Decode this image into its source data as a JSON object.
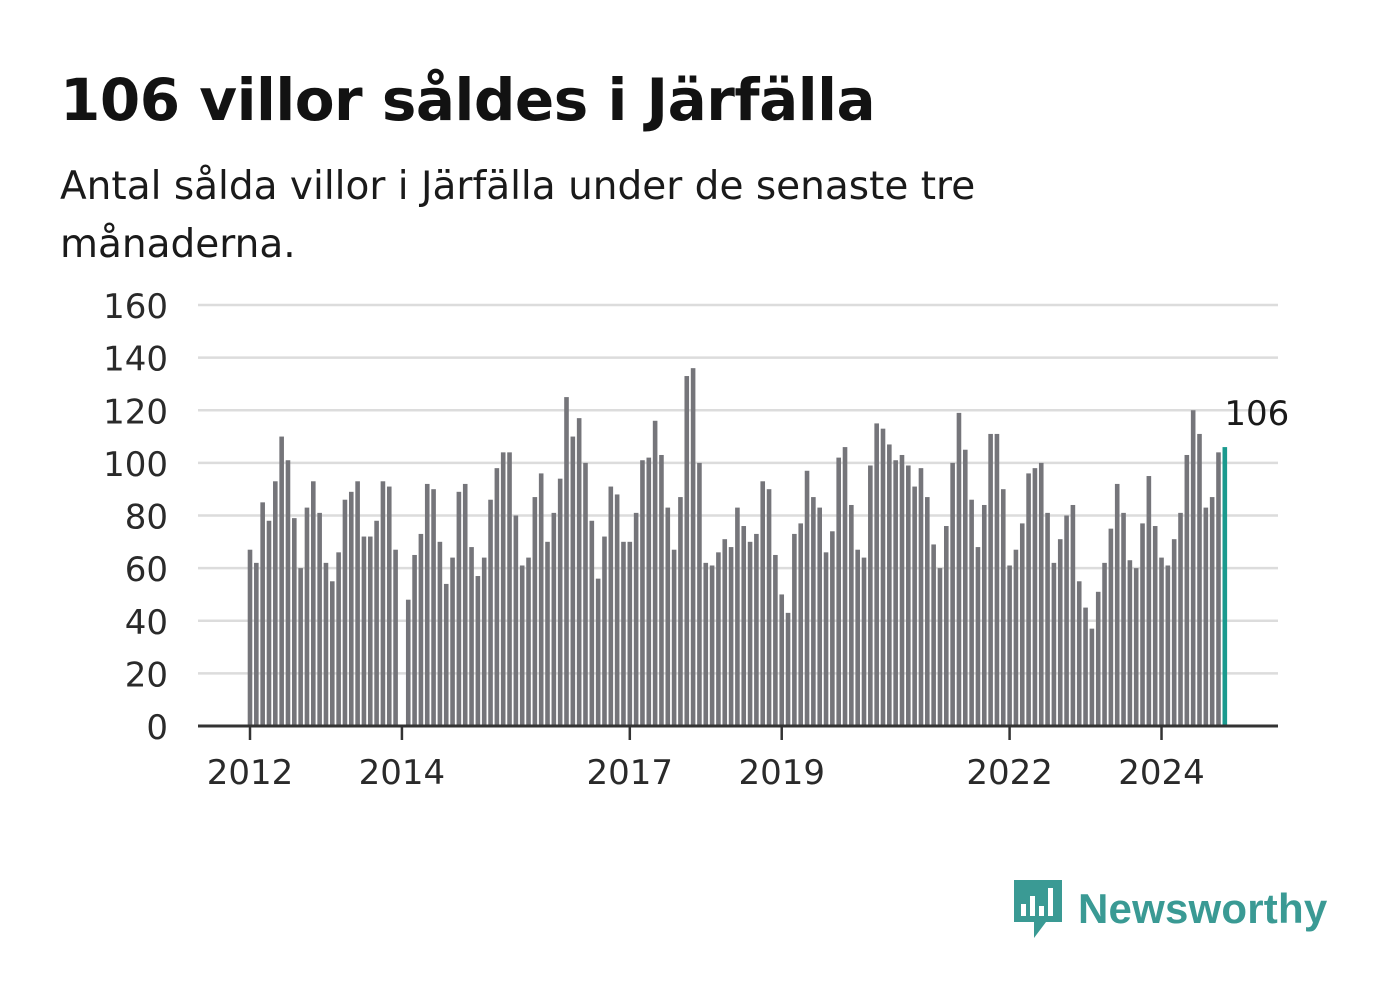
{
  "title": "106 villor såldes i Järfälla",
  "subtitle": "Antal sålda villor i Järfälla under de senaste tre månaderna.",
  "brand": {
    "name": "Newsworthy",
    "icon": "newsworthy-logo-icon",
    "color": "#3a9a94"
  },
  "colors": {
    "bar": "#75757a",
    "highlight": "#1a9a8e",
    "grid": "#dcdcdc",
    "axis": "#333333"
  },
  "chart_data": {
    "type": "bar",
    "start": "2012-01",
    "ylim": [
      0,
      160
    ],
    "yticks": [
      0,
      20,
      40,
      60,
      80,
      100,
      120,
      140,
      160
    ],
    "xtick_labels": [
      "2012",
      "2014",
      "2017",
      "2019",
      "2022",
      "2024"
    ],
    "highlight_label": "106",
    "values": [
      67,
      62,
      85,
      78,
      93,
      110,
      101,
      79,
      60,
      83,
      93,
      81,
      62,
      55,
      66,
      86,
      89,
      93,
      72,
      72,
      78,
      93,
      91,
      67,
      0,
      48,
      65,
      73,
      92,
      90,
      70,
      54,
      64,
      89,
      92,
      68,
      57,
      64,
      86,
      98,
      104,
      104,
      80,
      61,
      64,
      87,
      96,
      70,
      81,
      94,
      125,
      110,
      117,
      100,
      78,
      56,
      72,
      91,
      88,
      70,
      70,
      81,
      101,
      102,
      116,
      103,
      83,
      67,
      87,
      133,
      136,
      100,
      62,
      61,
      66,
      71,
      68,
      83,
      76,
      70,
      73,
      93,
      90,
      65,
      50,
      43,
      73,
      77,
      97,
      87,
      83,
      66,
      74,
      102,
      106,
      84,
      67,
      64,
      99,
      115,
      113,
      107,
      101,
      103,
      99,
      91,
      98,
      87,
      69,
      60,
      76,
      100,
      119,
      105,
      86,
      68,
      84,
      111,
      111,
      90,
      61,
      67,
      77,
      96,
      98,
      100,
      81,
      62,
      71,
      80,
      84,
      55,
      45,
      37,
      51,
      62,
      75,
      92,
      81,
      63,
      60,
      77,
      95,
      76,
      64,
      61,
      71,
      81,
      103,
      120,
      111,
      83,
      87,
      104,
      106
    ]
  }
}
